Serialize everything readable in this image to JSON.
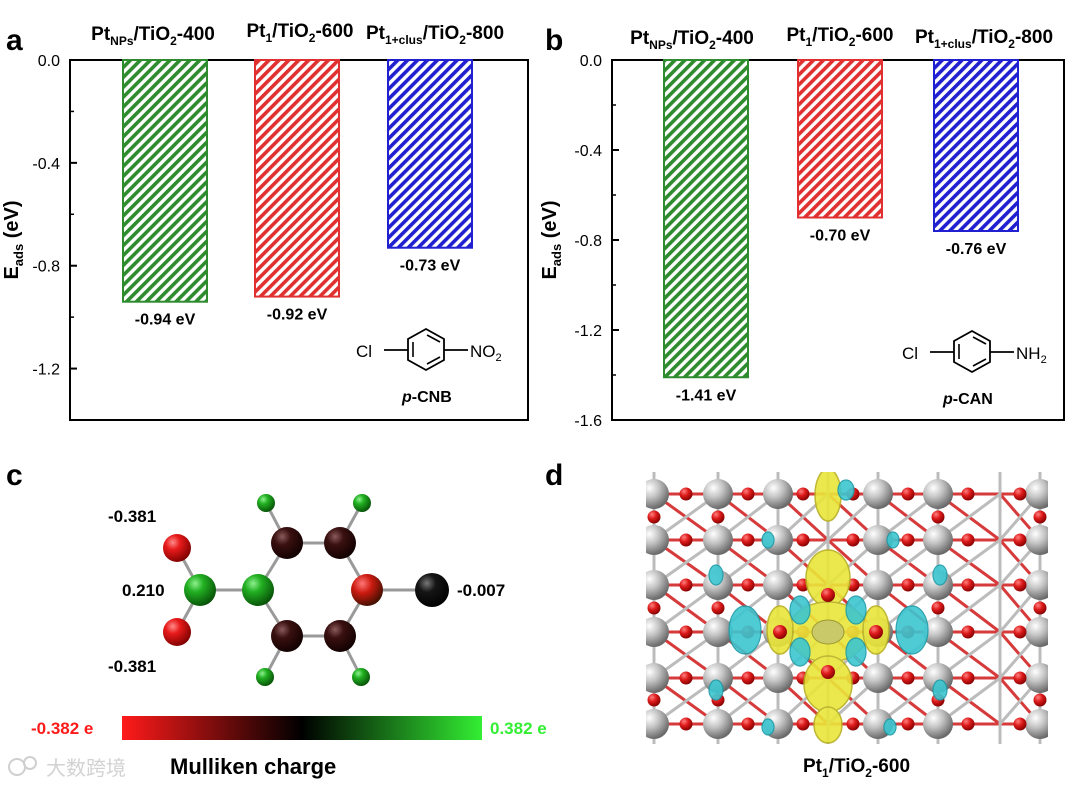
{
  "chart_data": [
    {
      "panel": "a",
      "type": "bar",
      "categories": [
        {
          "main": "Pt",
          "sub": "NPs",
          "rest": "/TiO",
          "sub2": "2",
          "tail": "-400"
        },
        {
          "main": "Pt",
          "sub": "1",
          "rest": "/TiO",
          "sub2": "2",
          "tail": "-600"
        },
        {
          "main": "Pt",
          "sub": "1+clus",
          "rest": "/TiO",
          "sub2": "2",
          "tail": "-800"
        }
      ],
      "values": [
        -0.94,
        -0.92,
        -0.73
      ],
      "value_labels": [
        "-0.94 eV",
        "-0.92 eV",
        "-0.73 eV"
      ],
      "colors": [
        "#2e8b2e",
        "#e03030",
        "#2020d0"
      ],
      "ylabel": {
        "main": "E",
        "sub": "ads",
        "rest": " (eV)"
      },
      "ylim": [
        -1.4,
        0.0
      ],
      "yticks": [
        0.0,
        -0.4,
        -0.8,
        -1.2
      ],
      "ytick_labels": [
        "0.0",
        "-0.4",
        "-0.8",
        "-1.2"
      ],
      "molecule": {
        "left": "Cl",
        "right": "NO",
        "right_sub": "2",
        "name_italic": "p",
        "name_rest": "-CNB"
      }
    },
    {
      "panel": "b",
      "type": "bar",
      "categories": [
        {
          "main": "Pt",
          "sub": "NPs",
          "rest": "/TiO",
          "sub2": "2",
          "tail": "-400"
        },
        {
          "main": "Pt",
          "sub": "1",
          "rest": "/TiO",
          "sub2": "2",
          "tail": "-600"
        },
        {
          "main": "Pt",
          "sub": "1+clus",
          "rest": "/TiO",
          "sub2": "2",
          "tail": "-800"
        }
      ],
      "values": [
        -1.41,
        -0.7,
        -0.76
      ],
      "value_labels": [
        "-1.41 eV",
        "-0.70 eV",
        "-0.76 eV"
      ],
      "colors": [
        "#2e8b2e",
        "#e03030",
        "#2020d0"
      ],
      "ylabel": {
        "main": "E",
        "sub": "ads",
        "rest": " (eV)"
      },
      "ylim": [
        -1.6,
        0.0
      ],
      "yticks": [
        0.0,
        -0.4,
        -0.8,
        -1.2,
        -1.6
      ],
      "ytick_labels": [
        "0.0",
        "-0.4",
        "-0.8",
        "-1.2",
        "-1.6"
      ],
      "molecule": {
        "left": "Cl",
        "right": "NH",
        "right_sub": "2",
        "name_italic": "p",
        "name_rest": "-CAN"
      }
    }
  ],
  "panel_labels": {
    "a": "a",
    "b": "b",
    "c": "c",
    "d": "d"
  },
  "panel_c": {
    "charges": {
      "oxygen_top": "-0.381",
      "nitrogen": "0.210",
      "oxygen_bottom": "-0.381",
      "chlorine": "-0.007"
    },
    "scale_min_label": "-0.382 e",
    "scale_max_label": "0.382 e",
    "scale_min_color": "#ff1a1a",
    "scale_mid_color": "#000000",
    "scale_max_color": "#33ee33",
    "scale_title": "Mulliken charge"
  },
  "panel_d": {
    "caption": {
      "main": "Pt",
      "sub": "1",
      "rest": "/TiO",
      "sub2": "2",
      "tail": "-600"
    }
  },
  "watermark": "大数跨境"
}
